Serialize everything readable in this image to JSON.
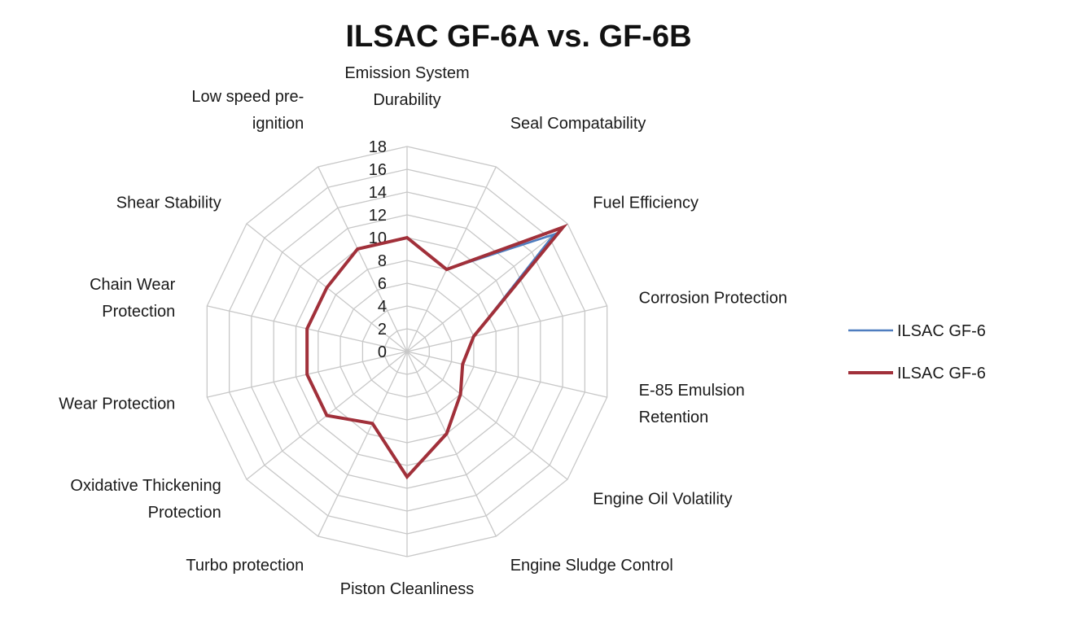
{
  "colors": {
    "grid": "#c8c8c8",
    "series_a": "#4f7dbf",
    "series_b": "#a1303a"
  },
  "chart_data": {
    "type": "radar",
    "title": "ILSAC GF-6A vs. GF-6B",
    "rlim": [
      0,
      18
    ],
    "r_ticks": [
      "0",
      "2",
      "4",
      "6",
      "8",
      "10",
      "12",
      "14",
      "16",
      "18"
    ],
    "grid": true,
    "legend_position": "right",
    "categories": [
      [
        "Emission System",
        "Durability"
      ],
      [
        "Seal Compatability"
      ],
      [
        "Fuel Efficiency"
      ],
      [
        "Corrosion Protection"
      ],
      [
        "E-85 Emulsion",
        "Retention"
      ],
      [
        "Engine Oil Volatility"
      ],
      [
        "Engine Sludge Control"
      ],
      [
        "Piston Cleanliness"
      ],
      [
        "Turbo protection"
      ],
      [
        "Oxidative Thickening",
        "Protection"
      ],
      [
        "Wear Protection"
      ],
      [
        "Chain Wear",
        "Protection"
      ],
      [
        "Shear Stability"
      ],
      [
        "Low speed pre-",
        "ignition"
      ]
    ],
    "series": [
      {
        "name": "ILSAC GF-6",
        "color_key": "series_a",
        "values": [
          10,
          8,
          16.5,
          6,
          5,
          6,
          8,
          11,
          7,
          9,
          9,
          9,
          9,
          10
        ]
      },
      {
        "name": "ILSAC GF-6",
        "color_key": "series_b",
        "values": [
          10,
          8,
          17.5,
          6,
          5,
          6,
          8,
          11,
          7,
          9,
          9,
          9,
          9,
          10
        ]
      }
    ]
  }
}
